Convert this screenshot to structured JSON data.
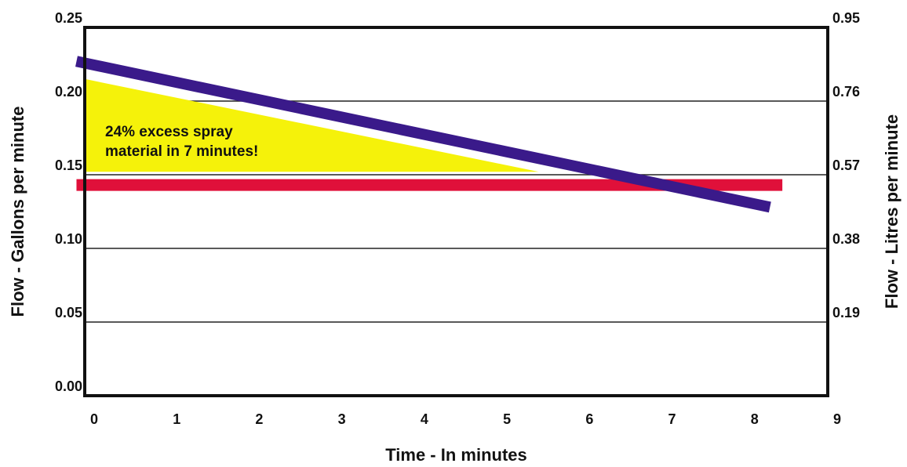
{
  "chart_data": {
    "type": "line",
    "xlabel": "Time - In minutes",
    "ylabel_left": "Flow - Gallons per minute",
    "ylabel_right": "Flow - Litres per minute",
    "xlim": [
      0,
      9
    ],
    "ylim": [
      0,
      0.25
    ],
    "x_ticks": [
      "0",
      "1",
      "2",
      "3",
      "4",
      "5",
      "6",
      "7",
      "8",
      "9"
    ],
    "y_ticks_left": [
      "0.00",
      "0.05",
      "0.10",
      "0.15",
      "0.20",
      "0.25"
    ],
    "y_ticks_right": [
      "0.19",
      "0.38",
      "0.57",
      "0.76",
      "0.95"
    ],
    "grid": "horizontal",
    "series": [
      {
        "color": "#3a1a8a",
        "x": [
          -0.1,
          8.3
        ],
        "y": [
          0.227,
          0.128
        ]
      },
      {
        "color": "#e0103a",
        "x": [
          -0.1,
          8.45
        ],
        "y": [
          0.143,
          0.143
        ]
      }
    ],
    "shaded_region": {
      "color": "#f5f20a",
      "x": [
        0,
        0,
        5.5
      ],
      "y": [
        0.215,
        0.152,
        0.152
      ]
    },
    "annotation": {
      "lines": [
        "24% excess spray",
        "material in 7 minutes!"
      ]
    }
  }
}
